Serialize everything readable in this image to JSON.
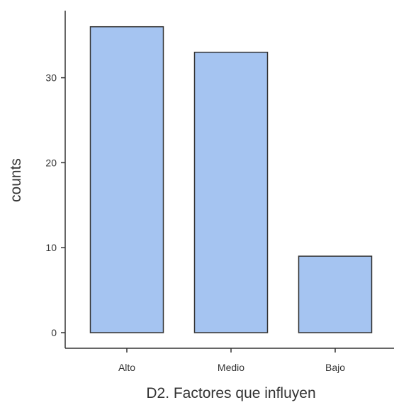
{
  "colors": {
    "bar_fill": "#a5c4f1",
    "bar_stroke": "#333333",
    "axis": "#333333",
    "background": "#ffffff"
  },
  "chart_data": {
    "type": "bar",
    "categories": [
      "Alto",
      "Medio",
      "Bajo"
    ],
    "values": [
      36,
      33,
      9
    ],
    "xlabel": "D2. Factores que influyen",
    "ylabel": "counts",
    "ylim": [
      0,
      38
    ],
    "yticks": [
      0,
      10,
      20,
      30
    ],
    "grid": false,
    "legend": "none"
  }
}
